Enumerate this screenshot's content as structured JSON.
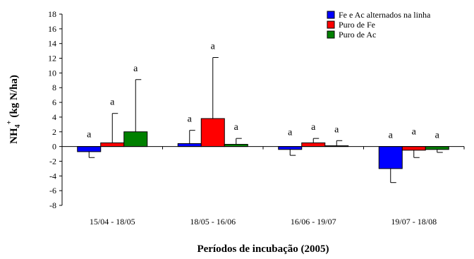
{
  "chart_data": {
    "type": "bar",
    "title": "",
    "xlabel": "Períodos de incubação (2005)",
    "ylabel": {
      "base": "NH",
      "sub": "4",
      "sup": "+",
      "units": "(kg N/ha)"
    },
    "ylim": [
      -8,
      18
    ],
    "yticks": [
      -8,
      -6,
      -4,
      -2,
      0,
      2,
      4,
      6,
      8,
      10,
      12,
      14,
      16,
      18
    ],
    "categories": [
      "15/04 - 18/05",
      "18/05 - 16/06",
      "16/06 - 19/07",
      "19/07 - 18/08"
    ],
    "legend_position": "top-right",
    "grid": false,
    "series": [
      {
        "name": "Fe e Ac alternados na linha",
        "color": "#0000FF",
        "values": [
          -0.7,
          0.4,
          -0.4,
          -3.0
        ],
        "errors": [
          0.8,
          1.8,
          0.8,
          1.9
        ],
        "labels": [
          "a",
          "a",
          "a",
          "a"
        ]
      },
      {
        "name": "Puro de Fe",
        "color": "#FF0000",
        "values": [
          0.5,
          3.8,
          0.5,
          -0.5
        ],
        "errors": [
          4.0,
          8.3,
          0.6,
          1.0
        ],
        "labels": [
          "a",
          "a",
          "a",
          "a"
        ]
      },
      {
        "name": "Puro de Ac",
        "color": "#008000",
        "values": [
          2.0,
          0.3,
          0.1,
          -0.4
        ],
        "errors": [
          7.1,
          0.8,
          0.7,
          0.4
        ],
        "labels": [
          "a",
          "a",
          "a",
          "a"
        ]
      }
    ]
  }
}
